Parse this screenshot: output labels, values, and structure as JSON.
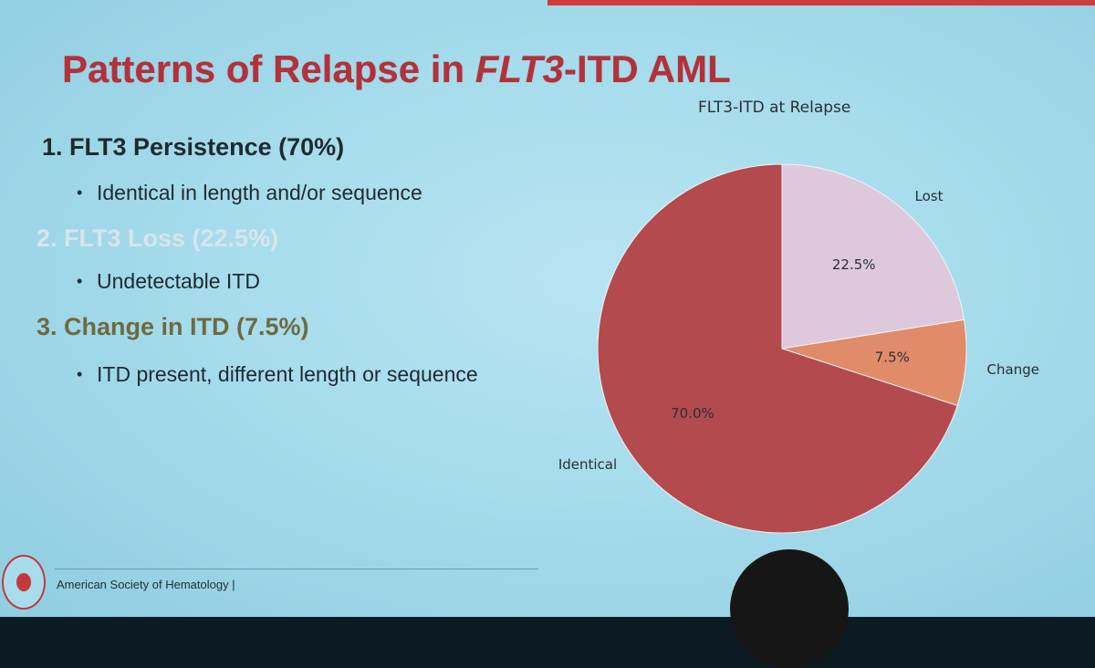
{
  "slide": {
    "title_prefix": "Patterns of Relapse in ",
    "title_italic": "FLT3",
    "title_suffix": "-ITD AML",
    "items": [
      {
        "label": "1. FLT3 Persistence (70%)",
        "sub": "Identical in length and/or sequence",
        "color": "#1f2a30"
      },
      {
        "label": "2. FLT3 Loss (22.5%)",
        "sub": "Undetectable ITD",
        "color": "#d8e4ee"
      },
      {
        "label": "3. Change in ITD (7.5%)",
        "sub": "ITD present, different length or sequence",
        "color": "#6e6a40"
      }
    ],
    "bullet": "•",
    "footer": "American Society of Hematology  |"
  },
  "chart_data": {
    "type": "pie",
    "title": "FLT3-ITD at Relapse",
    "slices": [
      {
        "label": "Lost",
        "value": 22.5,
        "pct_label": "22.5%",
        "color": "#ddc8dc"
      },
      {
        "label": "Changed",
        "value": 7.5,
        "pct_label": "7.5%",
        "color": "#e08c6a"
      },
      {
        "label": "Identical",
        "value": 70.0,
        "pct_label": "70.0%",
        "color": "#b34a4e"
      }
    ],
    "start_angle": "top",
    "direction": "clockwise"
  }
}
